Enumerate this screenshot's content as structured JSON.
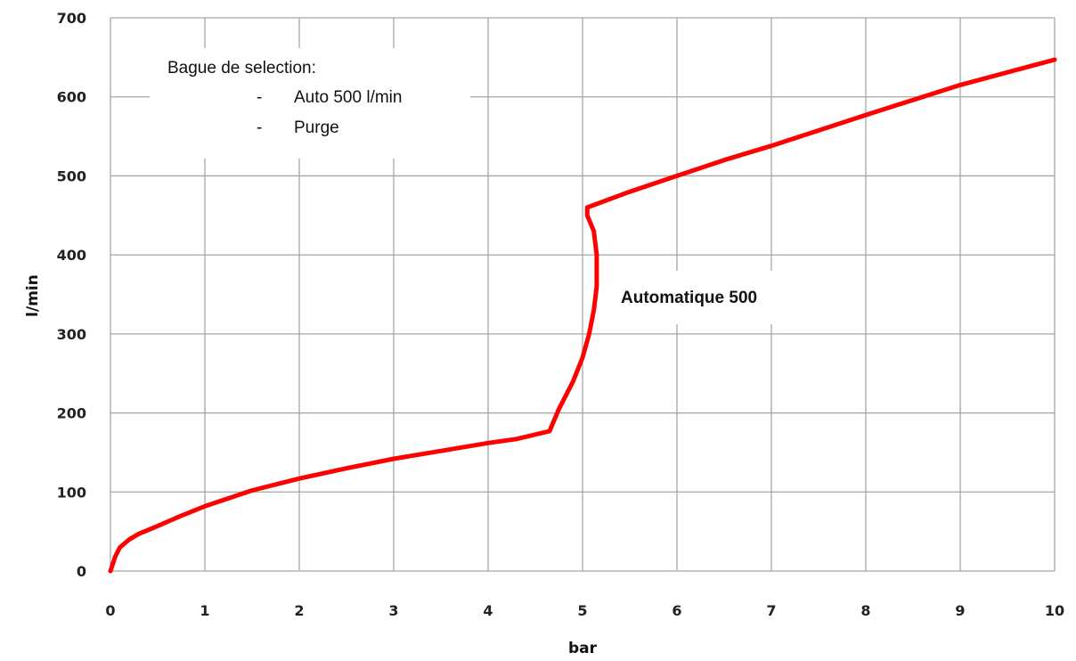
{
  "chart_data": {
    "type": "line",
    "xlabel": "bar",
    "ylabel": "l/min",
    "xlim": [
      0,
      10
    ],
    "ylim": [
      0,
      700
    ],
    "x_ticks": [
      0,
      1,
      2,
      3,
      4,
      5,
      6,
      7,
      8,
      9,
      10
    ],
    "y_ticks": [
      0,
      100,
      200,
      300,
      400,
      500,
      600,
      700
    ],
    "grid": true,
    "series": [
      {
        "color": "#ff0000",
        "x": [
          0.0,
          0.05,
          0.1,
          0.2,
          0.3,
          0.5,
          0.75,
          1.0,
          1.5,
          2.0,
          2.5,
          3.0,
          3.5,
          4.0,
          4.3,
          4.65,
          4.75,
          4.9,
          5.0,
          5.07,
          5.12,
          5.15,
          5.15,
          5.12,
          5.05,
          5.05,
          5.5,
          6.0,
          6.5,
          7.0,
          8.0,
          9.0,
          10.0
        ],
        "y": [
          0,
          18,
          30,
          40,
          47,
          57,
          70,
          82,
          102,
          117,
          130,
          142,
          152,
          162,
          167,
          177,
          205,
          240,
          270,
          300,
          330,
          360,
          400,
          430,
          450,
          460,
          480,
          500,
          520,
          538,
          577,
          615,
          647
        ]
      }
    ],
    "legend": {
      "title": "Bague de selection:",
      "items": [
        {
          "bullet": "-",
          "label": "Auto 500 l/min"
        },
        {
          "bullet": "-",
          "label": "Purge"
        }
      ],
      "placement": "top-left"
    },
    "annotations": [
      {
        "text": "Automatique 500",
        "x": 5.35,
        "y": 350
      }
    ]
  }
}
